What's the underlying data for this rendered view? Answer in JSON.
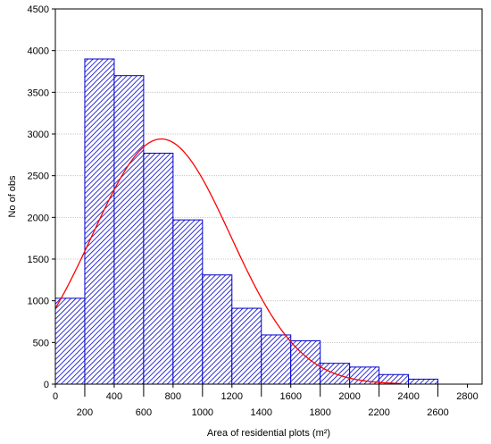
{
  "chart_data": {
    "type": "bar",
    "xlabel": "Area of residential plots (m²)",
    "ylabel": "No of obs",
    "bin_width": 200,
    "x_range": [
      0,
      2900
    ],
    "y_range": [
      0,
      4500
    ],
    "x_ticks": [
      0,
      200,
      400,
      600,
      800,
      1000,
      1200,
      1400,
      1600,
      1800,
      2000,
      2200,
      2400,
      2600,
      2800
    ],
    "y_ticks": [
      0,
      500,
      1000,
      1500,
      2000,
      2500,
      3000,
      3500,
      4000,
      4500
    ],
    "bins": [
      {
        "x0": 0,
        "x1": 200,
        "count": 1030
      },
      {
        "x0": 200,
        "x1": 400,
        "count": 3900
      },
      {
        "x0": 400,
        "x1": 600,
        "count": 3700
      },
      {
        "x0": 600,
        "x1": 800,
        "count": 2770
      },
      {
        "x0": 800,
        "x1": 1000,
        "count": 1970
      },
      {
        "x0": 1000,
        "x1": 1200,
        "count": 1310
      },
      {
        "x0": 1200,
        "x1": 1400,
        "count": 910
      },
      {
        "x0": 1400,
        "x1": 1600,
        "count": 590
      },
      {
        "x0": 1600,
        "x1": 1800,
        "count": 520
      },
      {
        "x0": 1800,
        "x1": 2000,
        "count": 250
      },
      {
        "x0": 2000,
        "x1": 2200,
        "count": 205
      },
      {
        "x0": 2200,
        "x1": 2400,
        "count": 115
      },
      {
        "x0": 2400,
        "x1": 2600,
        "count": 60
      }
    ],
    "fitted_curve": {
      "type": "normal",
      "mean": 720,
      "peak": 2940,
      "std_dev": 470,
      "x_extent": [
        0,
        2350
      ]
    },
    "grid": {
      "horizontal": true,
      "vertical": false
    },
    "colors": {
      "bar_stroke": "#0000cc",
      "bar_hatch": "#0000cc",
      "bar_fill": "#ffffff",
      "curve": "#ff0000",
      "grid": "#c8c8c8",
      "axis": "#000000"
    }
  }
}
